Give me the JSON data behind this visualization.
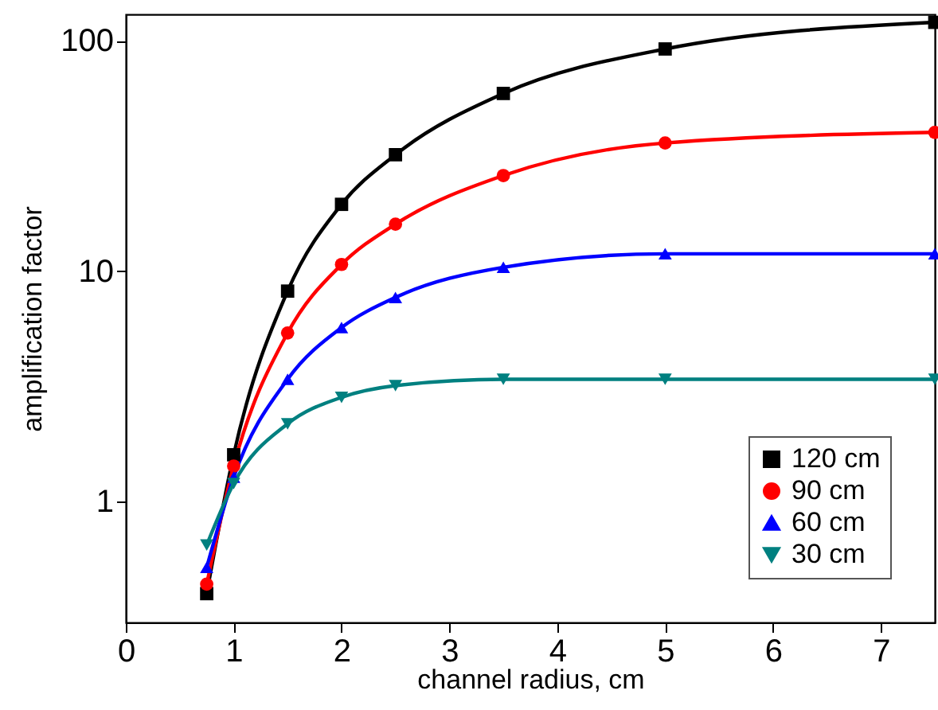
{
  "chart_data": {
    "type": "line",
    "xlabel": "channel radius, cm",
    "ylabel": "amplification factor",
    "x": [
      0.75,
      1,
      1.5,
      2,
      2.5,
      3.5,
      5,
      7.5
    ],
    "series": [
      {
        "name": "120 cm",
        "color": "#000000",
        "marker": "square",
        "values": [
          0.4,
          1.6,
          8.2,
          19.5,
          32,
          59,
          92,
          120
        ]
      },
      {
        "name": "90 cm",
        "color": "#ff0000",
        "marker": "circle",
        "values": [
          0.44,
          1.43,
          5.4,
          10.7,
          16,
          26,
          36,
          40
        ]
      },
      {
        "name": "60 cm",
        "color": "#0000ff",
        "marker": "triangle",
        "values": [
          0.52,
          1.28,
          3.4,
          5.7,
          7.7,
          10.4,
          11.9,
          11.9
        ]
      },
      {
        "name": "30 cm",
        "color": "#008080",
        "marker": "triangle-down",
        "values": [
          0.65,
          1.2,
          2.18,
          2.84,
          3.19,
          3.4,
          3.4,
          3.4
        ]
      }
    ],
    "xlim": [
      0,
      7.5
    ],
    "xticks": [
      0,
      1,
      2,
      3,
      4,
      5,
      6,
      7
    ],
    "ylim": [
      0.3,
      130
    ],
    "yticks": [
      1,
      10,
      100
    ],
    "log": "y",
    "legend": "bottom right"
  }
}
